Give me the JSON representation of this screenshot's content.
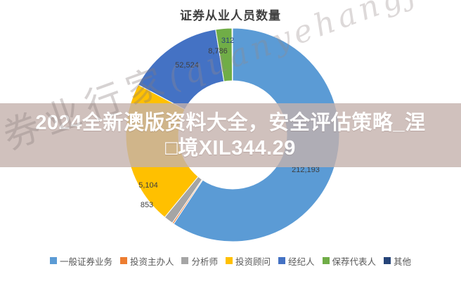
{
  "title": "证券从业人员数量",
  "banner": {
    "line1": "2024全新澳版资料大全，安全评估策略_涅",
    "line2": "□境XIL344.29",
    "text_color": "#ffffff",
    "bg_color": "rgba(196,178,173,0.8)"
  },
  "watermark": {
    "cn": "券业行家",
    "en": "(quanyehangjia)"
  },
  "chart_data": {
    "type": "pie",
    "subtype": "donut",
    "title": "证券从业人员数量",
    "donut_hole_ratio": 0.51,
    "start_angle_deg": 0,
    "direction": "clockwise",
    "legend_position": "bottom",
    "slices": [
      {
        "label": "一般证券业务",
        "value": 212193,
        "color": "#5B9BD5",
        "data_label": "212,193",
        "label_visible": true
      },
      {
        "label": "投资主办人",
        "value": 853,
        "color": "#ED7D31",
        "data_label": "853",
        "label_visible": true
      },
      {
        "label": "分析师",
        "value": 5104,
        "color": "#A5A5A5",
        "data_label": "5,104",
        "label_visible": true
      },
      {
        "label": "投资顾问",
        "value": 78000,
        "color": "#FFC000",
        "data_label": "",
        "label_visible": false
      },
      {
        "label": "经纪人",
        "value": 52524,
        "color": "#4472C4",
        "data_label": "52,524",
        "label_visible": true
      },
      {
        "label": "保荐代表人",
        "value": 8786,
        "color": "#70AD47",
        "data_label": "8,786",
        "label_visible": true
      },
      {
        "label": "其他",
        "value": 312,
        "color": "#264478",
        "data_label": "312",
        "label_visible": true
      }
    ]
  }
}
